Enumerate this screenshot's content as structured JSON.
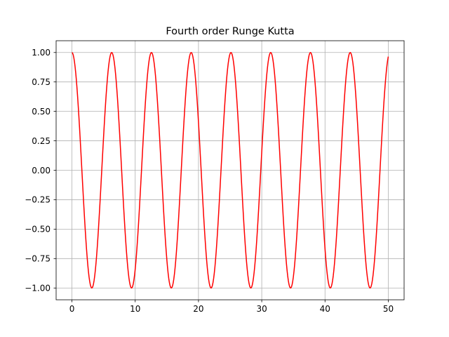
{
  "chart_data": {
    "type": "line",
    "title": "Fourth order Runge Kutta",
    "xlabel": "",
    "ylabel": "",
    "xlim": [
      -2.5,
      52.5
    ],
    "ylim": [
      -1.1,
      1.1
    ],
    "grid": true,
    "x_ticks": [
      0,
      10,
      20,
      30,
      40,
      50
    ],
    "x_tick_labels": [
      "0",
      "10",
      "20",
      "30",
      "40",
      "50"
    ],
    "y_ticks": [
      1.0,
      0.75,
      0.5,
      0.25,
      0.0,
      -0.25,
      -0.5,
      -0.75,
      -1.0
    ],
    "y_tick_labels": [
      "1.00",
      "0.75",
      "0.50",
      "0.25",
      "0.00",
      "−0.25",
      "−0.50",
      "−0.75",
      "−1.00"
    ],
    "series": [
      {
        "color": "#ff0000",
        "x_start": 0,
        "x_end": 50,
        "function": "cos(x)",
        "x_step": 0.1
      }
    ]
  }
}
